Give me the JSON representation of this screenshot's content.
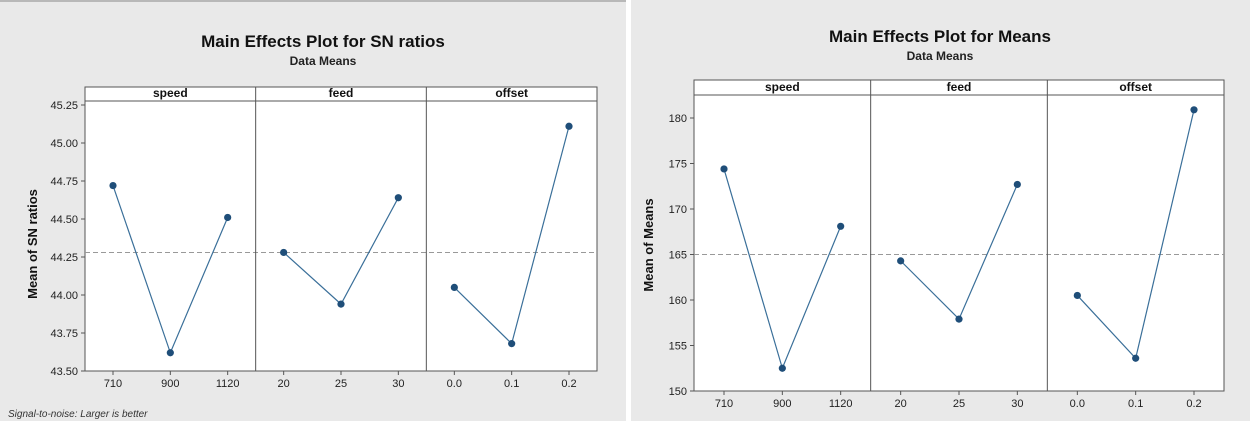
{
  "chart_data": [
    {
      "type": "line",
      "title": "Main Effects Plot for SN ratios",
      "subtitle": "Data Means",
      "ylabel": "Mean of SN ratios",
      "ylim": [
        43.5,
        45.25
      ],
      "yticks": [
        "43.50",
        "43.75",
        "44.00",
        "44.25",
        "44.50",
        "44.75",
        "45.00",
        "45.25"
      ],
      "reference_line": 44.28,
      "footnote": "Signal-to-noise: Larger is better",
      "panels": [
        {
          "name": "speed",
          "x": [
            "710",
            "900",
            "1120"
          ],
          "values": [
            44.72,
            43.62,
            44.51
          ]
        },
        {
          "name": "feed",
          "x": [
            "20",
            "25",
            "30"
          ],
          "values": [
            44.28,
            43.94,
            44.64
          ]
        },
        {
          "name": "offset",
          "x": [
            "0.0",
            "0.1",
            "0.2"
          ],
          "values": [
            44.05,
            43.68,
            45.11
          ]
        }
      ],
      "colors": {
        "line": "#3a6f99",
        "marker": "#1f4e79",
        "reference": "#999999"
      }
    },
    {
      "type": "line",
      "title": "Main Effects Plot for Means",
      "subtitle": "Data Means",
      "ylabel": "Mean of Means",
      "ylim": [
        150,
        180
      ],
      "yticks": [
        "150",
        "155",
        "160",
        "165",
        "170",
        "175",
        "180"
      ],
      "reference_line": 165,
      "panels": [
        {
          "name": "speed",
          "x": [
            "710",
            "900",
            "1120"
          ],
          "values": [
            174.4,
            152.5,
            168.1
          ]
        },
        {
          "name": "feed",
          "x": [
            "20",
            "25",
            "30"
          ],
          "values": [
            164.3,
            157.9,
            172.7
          ]
        },
        {
          "name": "offset",
          "x": [
            "0.0",
            "0.1",
            "0.2"
          ],
          "values": [
            160.5,
            153.6,
            180.9
          ]
        }
      ],
      "colors": {
        "line": "#3a6f99",
        "marker": "#1f4e79",
        "reference": "#999999"
      }
    }
  ]
}
